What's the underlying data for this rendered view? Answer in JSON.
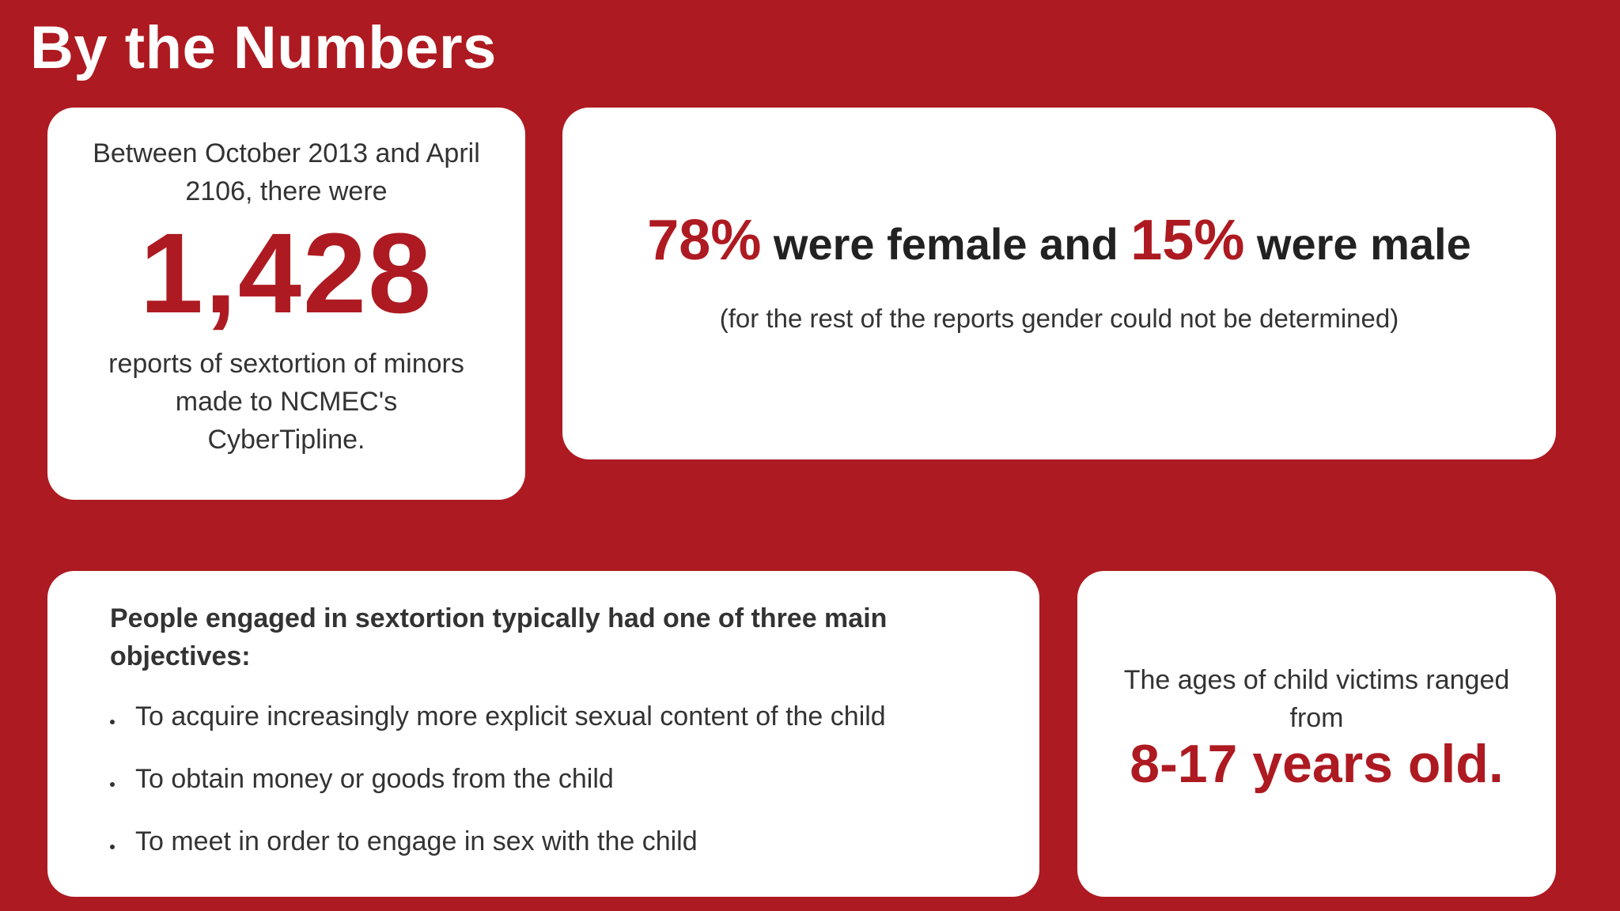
{
  "page": {
    "title": "By the Numbers"
  },
  "reports_card": {
    "intro": "Between October 2013 and April 2106, there were",
    "count": "1,428",
    "outro": "reports of sextortion of minors made to NCMEC's CyberTipline."
  },
  "gender_card": {
    "female_pct": "78%",
    "female_text": " were female and ",
    "male_pct": "15%",
    "male_text": " were male",
    "note": "(for the rest of the reports gender could not be determined)"
  },
  "objectives_card": {
    "heading": "People engaged in sextortion typically had one of three main objectives:",
    "items": [
      "To acquire increasingly more explicit sexual content of the child",
      "To obtain money or goods from the child",
      "To meet in order to engage in sex with the child"
    ]
  },
  "ages_card": {
    "intro": "The ages of child victims ranged from",
    "range": "8-17 years old."
  },
  "colors": {
    "background": "#ae1a21",
    "accent": "#ae1a21",
    "card": "#ffffff",
    "text": "#333333"
  }
}
